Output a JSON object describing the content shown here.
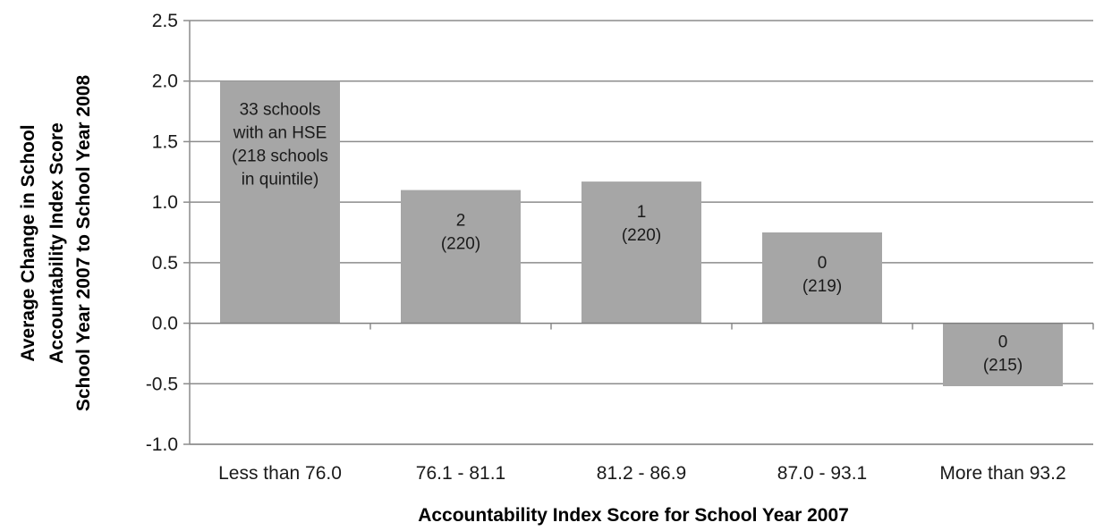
{
  "chart_data": {
    "type": "bar",
    "title": "",
    "xlabel": "Accountability Index Score for School Year 2007",
    "ylabel_lines": [
      "Average Change in School",
      "Accountability Index Score",
      "School Year 2007  to  School Year 2008"
    ],
    "categories": [
      "Less than 76.0",
      "76.1 - 81.1",
      "81.2 - 86.9",
      "87.0 - 93.1",
      "More than 93.2"
    ],
    "values": [
      2.0,
      1.1,
      1.17,
      0.75,
      -0.52
    ],
    "bar_labels": [
      [
        "33 schools",
        "with an HSE",
        "(218 schools",
        "in quintile)"
      ],
      [
        "2",
        "(220)"
      ],
      [
        "1",
        "(220)"
      ],
      [
        "0",
        "(219)"
      ],
      [
        "0",
        "(215)"
      ]
    ],
    "ylim": [
      -1.0,
      2.5
    ],
    "yticks": [
      "2.5",
      "2.0",
      "1.5",
      "1.0",
      "0.5",
      "0.0",
      "-0.5",
      "-1.0"
    ],
    "grid": true,
    "colors": {
      "bar": "#a6a6a6",
      "grid": "#8c8c8c",
      "axis": "#8c8c8c"
    }
  }
}
